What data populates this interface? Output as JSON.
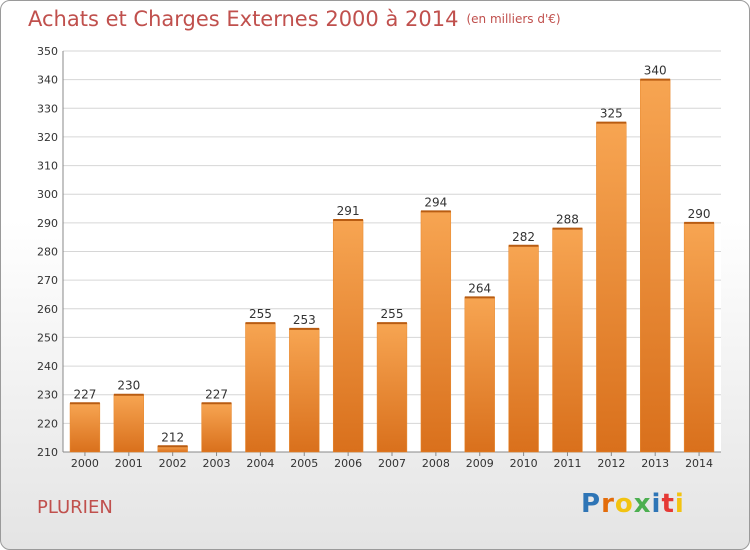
{
  "title": "Achats et Charges Externes 2000 à 2014",
  "unit": "(en milliers d'€)",
  "city": "PLURIEN",
  "logo": {
    "letters": [
      "P",
      "r",
      "o",
      "x",
      "i",
      "t",
      "i"
    ],
    "colors": [
      "#2e75b6",
      "#e36c0a",
      "#f2c311",
      "#4caf50",
      "#2e75b6",
      "#e53935",
      "#f2c311"
    ]
  },
  "chart_data": {
    "type": "bar",
    "categories": [
      "2000",
      "2001",
      "2002",
      "2003",
      "2004",
      "2005",
      "2006",
      "2007",
      "2008",
      "2009",
      "2010",
      "2011",
      "2012",
      "2013",
      "2014"
    ],
    "values": [
      227,
      230,
      212,
      227,
      255,
      253,
      291,
      255,
      294,
      264,
      282,
      288,
      325,
      340,
      290
    ],
    "ylim": [
      210,
      350
    ],
    "yticks": [
      210,
      220,
      230,
      240,
      250,
      260,
      270,
      280,
      290,
      300,
      310,
      320,
      330,
      340,
      350
    ],
    "grid": true,
    "bar_color": "#f0913a"
  }
}
